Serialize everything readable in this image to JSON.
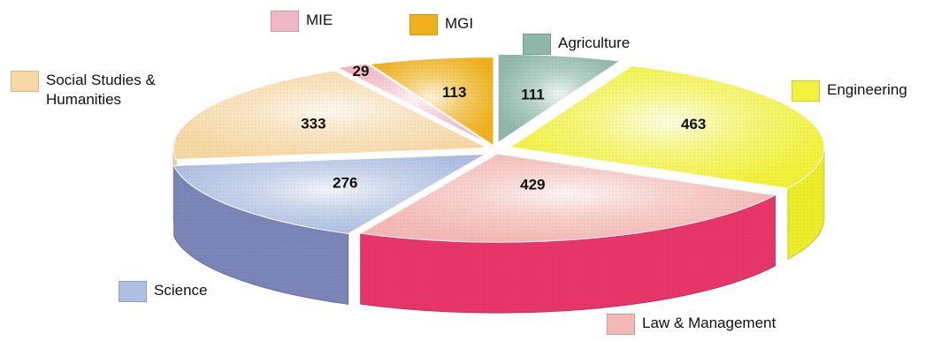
{
  "chart_data": {
    "type": "pie",
    "title": "",
    "categories": [
      "Agriculture",
      "Engineering",
      "Law & Management",
      "Science",
      "Social Studies & Humanities",
      "MIE",
      "MGI"
    ],
    "values": [
      111,
      463,
      429,
      276,
      333,
      29,
      113
    ],
    "value_labels": [
      "111",
      "463",
      "429",
      "276",
      "333",
      "29",
      "113"
    ],
    "colors": [
      "#6f9e8e",
      "#eded2a",
      "#e8356a",
      "#7b85b8",
      "#f7d9a6",
      "#f2b7c6",
      "#efb21c"
    ],
    "top_colors": [
      "#8fb8aa",
      "#f2f23c",
      "#f4b9b4",
      "#aebfe2",
      "#f7d9a6",
      "#f2b7c6",
      "#efb21c"
    ],
    "legend": [
      {
        "label": "MIE"
      },
      {
        "label": "MGI"
      },
      {
        "label": "Agriculture"
      },
      {
        "label": "Engineering"
      },
      {
        "label": "Social Studies &\nHumanities"
      },
      {
        "label": "Science"
      },
      {
        "label": "Law & Management"
      }
    ]
  }
}
